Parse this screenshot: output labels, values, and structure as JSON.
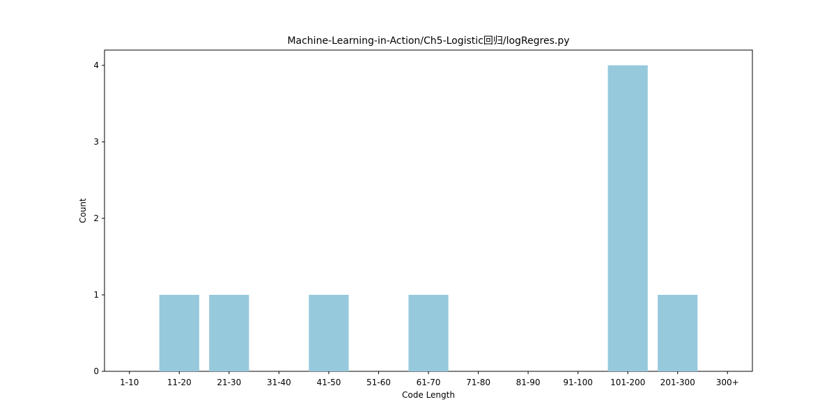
{
  "chart_data": {
    "type": "bar",
    "title": "Machine-Learning-in-Action/Ch5-Logistic回归/logRegres.py",
    "xlabel": "Code Length",
    "ylabel": "Count",
    "categories": [
      "1-10",
      "11-20",
      "21-30",
      "31-40",
      "41-50",
      "51-60",
      "61-70",
      "71-80",
      "81-90",
      "91-100",
      "101-200",
      "201-300",
      "300+"
    ],
    "values": [
      0,
      1,
      1,
      0,
      1,
      0,
      1,
      0,
      0,
      0,
      4,
      1,
      0
    ],
    "ylim": [
      0,
      4.2
    ],
    "yticks": [
      0,
      1,
      2,
      3,
      4
    ],
    "grid": false,
    "legend": "none",
    "colors": {
      "bar": "#96c9dc",
      "axis": "#000000",
      "background": "#ffffff"
    }
  }
}
